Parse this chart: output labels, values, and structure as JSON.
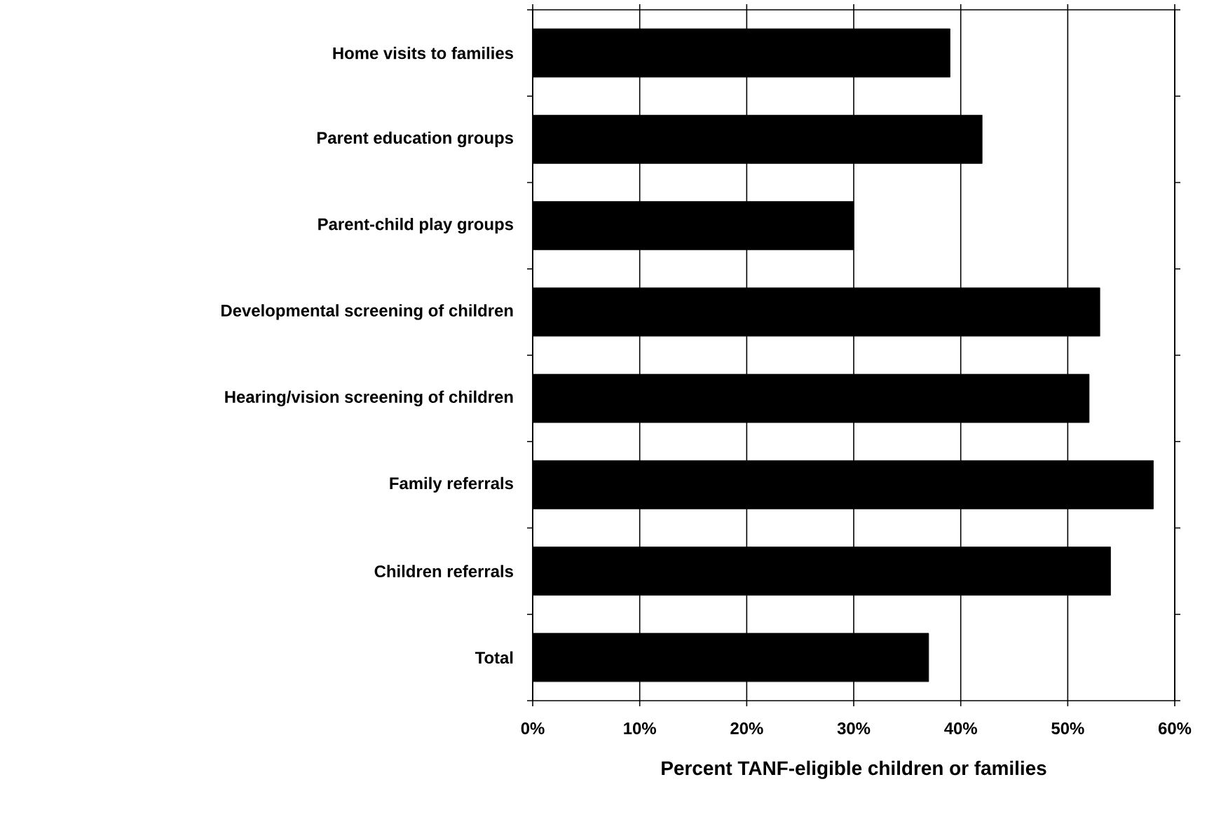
{
  "chart_data": {
    "type": "bar",
    "orientation": "horizontal",
    "xlabel": "Percent TANF-eligible children or families",
    "categories": [
      "Home visits to families",
      "Parent education groups",
      "Parent-child play groups",
      "Developmental screening of children",
      "Hearing/vision screening of children",
      "Family referrals",
      "Children referrals",
      "Total"
    ],
    "values": [
      39,
      42,
      30,
      53,
      52,
      58,
      54,
      37
    ],
    "color": "#000000",
    "xlim": [
      0,
      60
    ],
    "xticks": [
      {
        "value": 0,
        "label": "0%"
      },
      {
        "value": 10,
        "label": "10%"
      },
      {
        "value": 20,
        "label": "20%"
      },
      {
        "value": 30,
        "label": "30%"
      },
      {
        "value": 40,
        "label": "40%"
      },
      {
        "value": 50,
        "label": "50%"
      },
      {
        "value": 60,
        "label": "60%"
      }
    ],
    "grid": "x"
  }
}
